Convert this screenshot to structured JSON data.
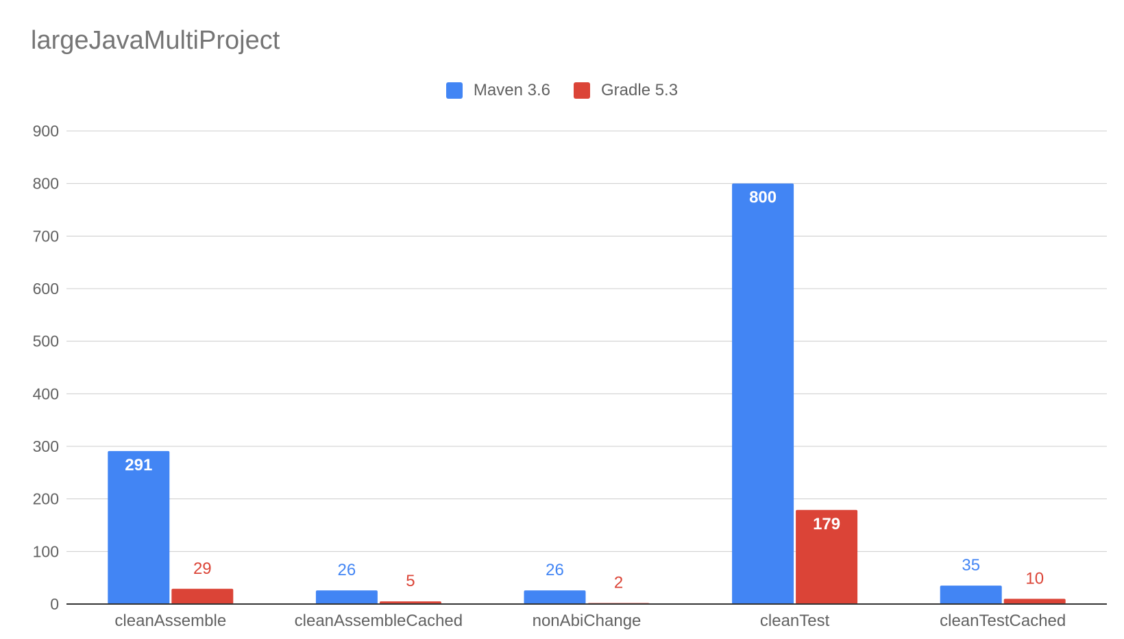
{
  "chart_data": {
    "type": "bar",
    "title": "largeJavaMultiProject",
    "xlabel": "",
    "ylabel": "",
    "ylim": [
      0,
      900
    ],
    "yticks": [
      0,
      100,
      200,
      300,
      400,
      500,
      600,
      700,
      800,
      900
    ],
    "grid": true,
    "legend_position": "top-center",
    "categories": [
      "cleanAssemble",
      "cleanAssembleCached",
      "nonAbiChange",
      "cleanTest",
      "cleanTestCached"
    ],
    "series": [
      {
        "name": "Maven 3.6",
        "color": "#4285F4",
        "values": [
          291,
          26,
          26,
          800,
          35
        ]
      },
      {
        "name": "Gradle 5.3",
        "color": "#DB4437",
        "values": [
          29,
          5,
          2,
          179,
          10
        ]
      }
    ]
  }
}
